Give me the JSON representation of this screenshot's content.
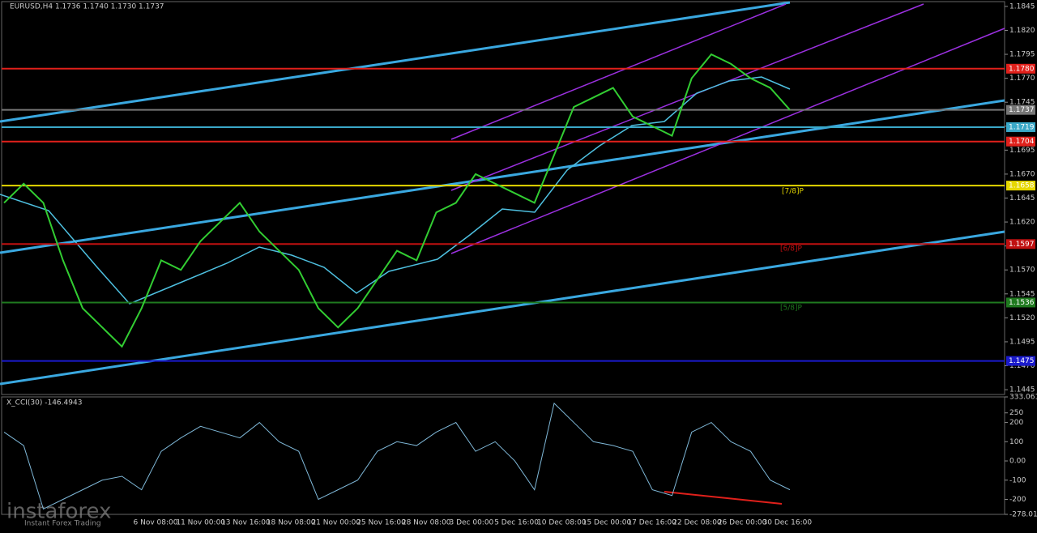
{
  "header": "EURUSD,H4  1.1736 1.1740 1.1730 1.1737",
  "chart_data": {
    "type": "line",
    "ylim": [
      1.144,
      1.185
    ],
    "yticks": [
      {
        "value": 1.1845,
        "label": "1.1845"
      },
      {
        "value": 1.182,
        "label": "1.1820"
      },
      {
        "value": 1.1795,
        "label": "1.1795"
      },
      {
        "value": 1.177,
        "label": "1.1770"
      },
      {
        "value": 1.1745,
        "label": "1.1745"
      },
      {
        "value": 1.172,
        "label": "1.1720"
      },
      {
        "value": 1.1695,
        "label": "1.1695"
      },
      {
        "value": 1.167,
        "label": "1.1670"
      },
      {
        "value": 1.1645,
        "label": "1.1645"
      },
      {
        "value": 1.162,
        "label": "1.1620"
      },
      {
        "value": 1.1595,
        "label": "1.1595"
      },
      {
        "value": 1.157,
        "label": "1.1570"
      },
      {
        "value": 1.1545,
        "label": "1.1545"
      },
      {
        "value": 1.152,
        "label": "1.1520"
      },
      {
        "value": 1.1495,
        "label": "1.1495"
      },
      {
        "value": 1.147,
        "label": "1.1470"
      },
      {
        "value": 1.1445,
        "label": "1.1445"
      }
    ],
    "closes": [
      1.164,
      1.166,
      1.164,
      1.158,
      1.153,
      1.151,
      1.149,
      1.153,
      1.158,
      1.157,
      1.16,
      1.162,
      1.164,
      1.161,
      1.159,
      1.157,
      1.153,
      1.151,
      1.153,
      1.156,
      1.159,
      1.158,
      1.163,
      1.164,
      1.167,
      1.166,
      1.165,
      1.164,
      1.169,
      1.174,
      1.175,
      1.176,
      1.173,
      1.172,
      1.171,
      1.177,
      1.1795,
      1.1785,
      1.177,
      1.176,
      1.1737
    ],
    "color": "#32cd32",
    "levels": [
      {
        "value": 1.178,
        "label": "1.1780",
        "color": "#e0201b"
      },
      {
        "value": 1.1737,
        "label": "1.1737",
        "color": "#777777"
      },
      {
        "value": 1.1719,
        "label": "1.1719",
        "color": "#3aa8c8"
      },
      {
        "value": 1.1704,
        "label": "1.1704",
        "color": "#e0201b"
      },
      {
        "value": 1.1658,
        "label": "1.1658",
        "color": "#e6d800"
      },
      {
        "value": 1.1597,
        "label": "1.1597",
        "color": "#c01010"
      },
      {
        "value": 1.1536,
        "label": "1.1536",
        "color": "#1f7a1f"
      },
      {
        "value": 1.1475,
        "label": "1.1475",
        "color": "#1a1acc"
      }
    ],
    "murray": [
      "[7/8]P",
      "[6/8]P",
      "[5/8]P"
    ],
    "dates": [
      "6 Nov 08:00",
      "11 Nov 00:00",
      "13 Nov 16:00",
      "18 Nov 08:00",
      "21 Nov 00:00",
      "25 Nov 16:00",
      "28 Nov 08:00",
      "3 Dec 00:00",
      "5 Dec 16:00",
      "10 Dec 08:00",
      "15 Dec 00:00",
      "17 Dec 16:00",
      "22 Dec 08:00",
      "26 Dec 00:00",
      "30 Dec 16:00"
    ]
  },
  "cci": {
    "title": "X_CCI(30) -146.4943",
    "ylim": [
      -278.013,
      333.061
    ],
    "yticks": [
      {
        "value": 333.061,
        "label": "333.061"
      },
      250,
      200,
      100,
      {
        "value": 0,
        "label": "0.00"
      },
      -100,
      -200,
      {
        "value": -278.013,
        "label": "-278.013"
      }
    ],
    "values": [
      150,
      80,
      -250,
      -200,
      -150,
      -100,
      -80,
      -150,
      50,
      120,
      180,
      150,
      120,
      200,
      100,
      50,
      -200,
      -150,
      -100,
      50,
      100,
      80,
      150,
      200,
      50,
      100,
      0,
      -150,
      300,
      200,
      100,
      80,
      50,
      -150,
      -180,
      150,
      200,
      100,
      50,
      -100,
      -150
    ],
    "color": "#7fb8d8"
  },
  "watermark": {
    "brand": "instaforex",
    "tagline": "Instant Forex Trading"
  }
}
